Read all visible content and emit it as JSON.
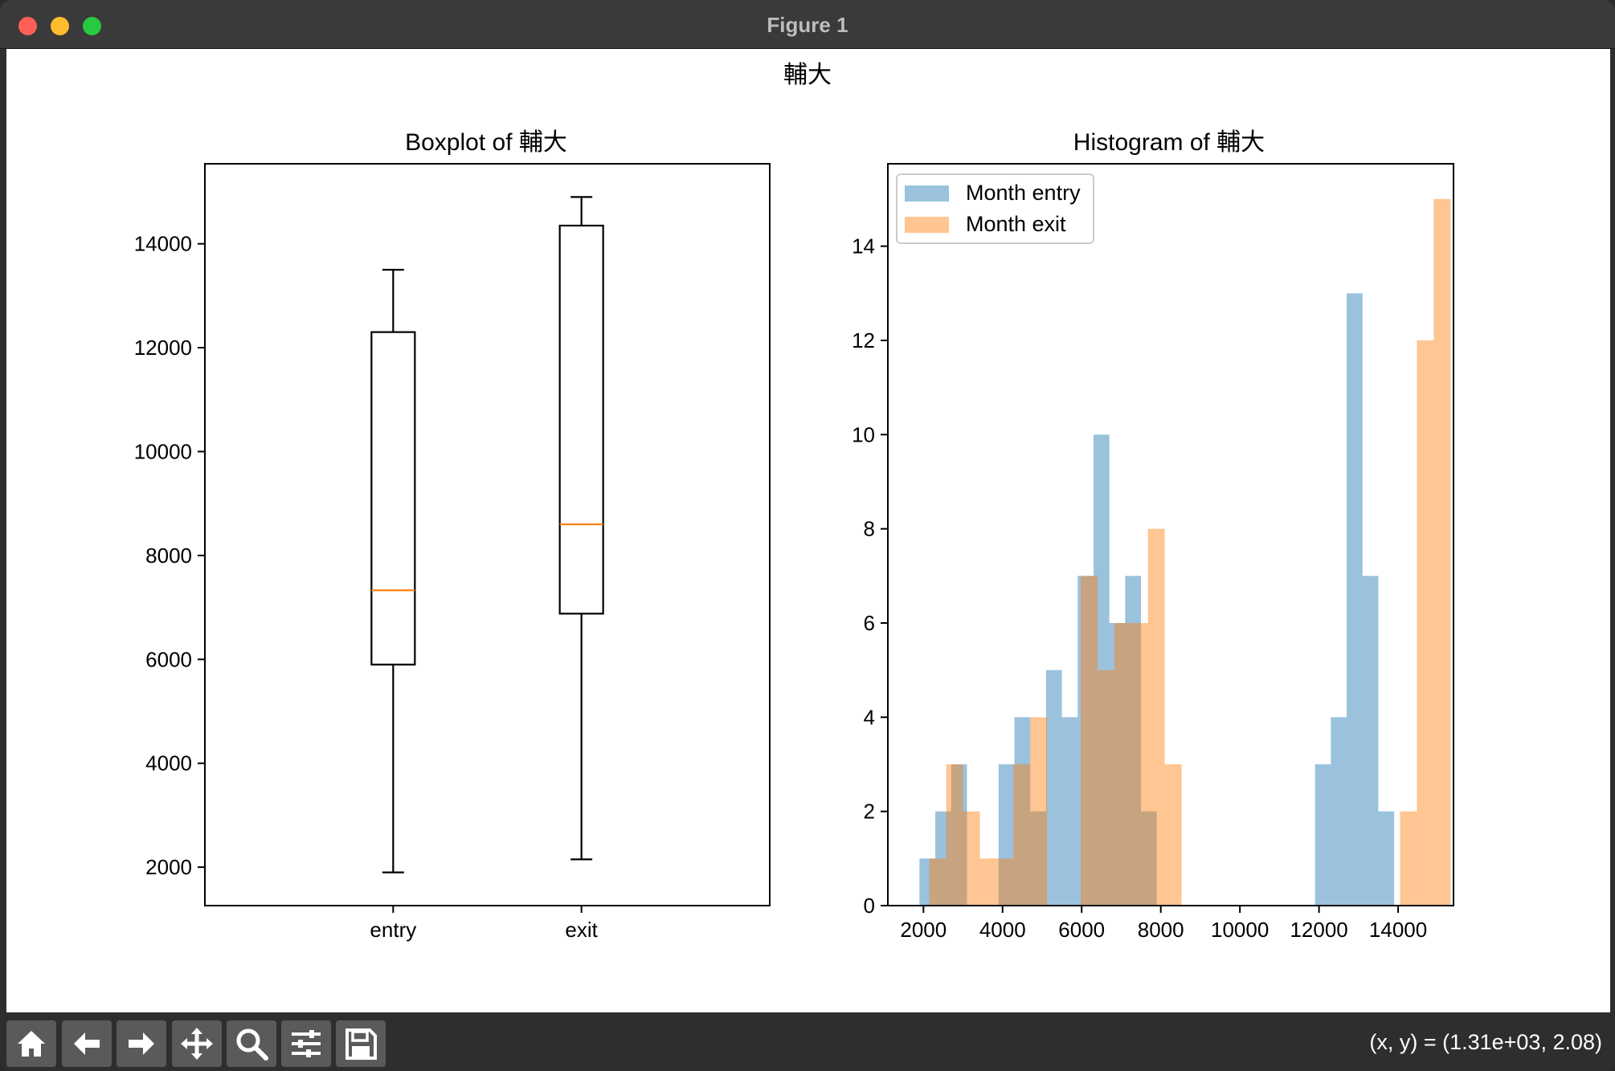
{
  "window": {
    "title": "Figure 1"
  },
  "figure": {
    "suptitle": "輔大"
  },
  "toolbar": {
    "buttons": [
      {
        "name": "home-icon"
      },
      {
        "name": "back-arrow-icon"
      },
      {
        "name": "forward-arrow-icon"
      },
      {
        "name": "pan-icon"
      },
      {
        "name": "zoom-icon"
      },
      {
        "name": "subplots-config-icon"
      },
      {
        "name": "save-icon"
      }
    ],
    "coords": "(x, y) = (1.31e+03, 2.08)"
  },
  "chart_data": [
    {
      "type": "boxplot",
      "title": "Boxplot of 輔大",
      "categories": [
        "entry",
        "exit"
      ],
      "ylim": [
        1260,
        15540
      ],
      "yticks": [
        2000,
        4000,
        6000,
        8000,
        10000,
        12000,
        14000
      ],
      "boxes": [
        {
          "label": "entry",
          "whisker_low": 1900,
          "q1": 5900,
          "median": 7330,
          "q3": 12300,
          "whisker_high": 13500
        },
        {
          "label": "exit",
          "whisker_low": 2150,
          "q1": 6880,
          "median": 8600,
          "q3": 14350,
          "whisker_high": 14900
        }
      ],
      "colors": {
        "box": "#000000",
        "median": "#ff7f0e"
      }
    },
    {
      "type": "histogram",
      "title": "Histogram of 輔大",
      "xlim": [
        1100,
        15400
      ],
      "ylim": [
        0,
        15.75
      ],
      "xticks": [
        2000,
        4000,
        6000,
        8000,
        10000,
        12000,
        14000
      ],
      "yticks": [
        0,
        2,
        4,
        6,
        8,
        10,
        12,
        14
      ],
      "legend": "top-left",
      "alpha": 0.45,
      "series": [
        {
          "name": "Month entry",
          "color": "#1f77b4",
          "bin_start": 1900,
          "bin_width": 400,
          "counts": [
            1,
            2,
            3,
            0,
            0,
            3,
            4,
            2,
            5,
            4,
            7,
            10,
            6,
            7,
            2,
            0,
            0,
            0,
            0,
            0,
            0,
            0,
            0,
            0,
            0,
            3,
            4,
            13,
            7,
            2
          ]
        },
        {
          "name": "Month exit",
          "color": "#ff7f0e",
          "bin_start": 2150,
          "bin_width": 425,
          "counts": [
            1,
            3,
            2,
            1,
            1,
            3,
            4,
            0,
            0,
            7,
            5,
            6,
            6,
            8,
            3,
            0,
            0,
            0,
            0,
            0,
            0,
            0,
            0,
            0,
            0,
            0,
            0,
            0,
            2,
            12,
            15
          ]
        }
      ]
    }
  ]
}
